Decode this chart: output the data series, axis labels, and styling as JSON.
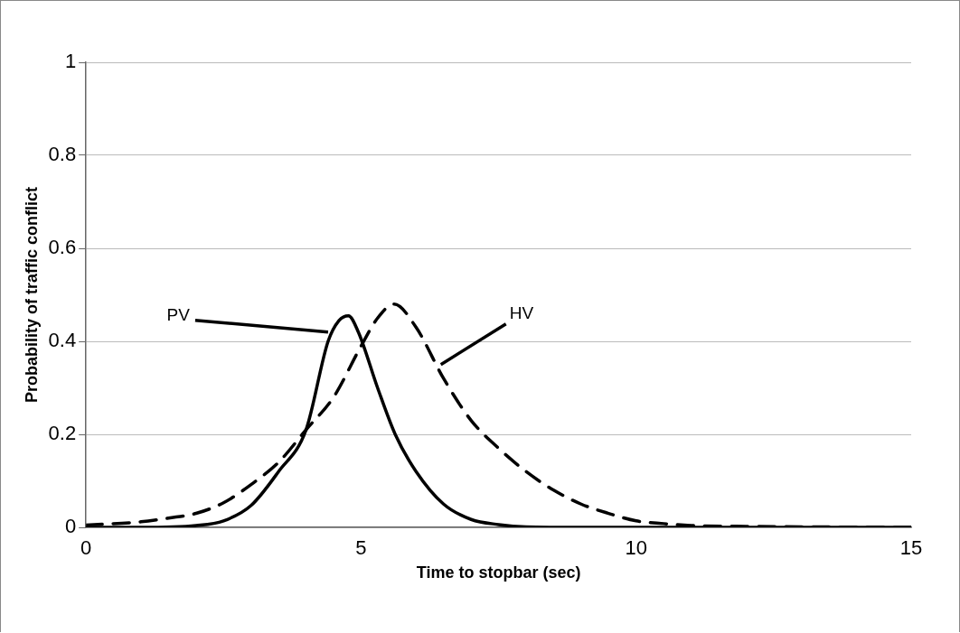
{
  "chart_data": {
    "type": "line",
    "xlabel": "Time to stopbar (sec)",
    "ylabel": "Probability of traffic conflict",
    "xlim": [
      0,
      15
    ],
    "xticks": [
      0,
      5,
      10,
      15
    ],
    "ylim": [
      0,
      1
    ],
    "yticks": [
      0,
      0.2,
      0.4,
      0.6,
      0.8,
      1
    ],
    "grid": "y",
    "legend": false,
    "marker": "none",
    "series": [
      {
        "color": "#000000",
        "line_style": "solid",
        "x": [
          0,
          1,
          2,
          2.5,
          3,
          3.5,
          4,
          4.4,
          4.6,
          4.77,
          4.95,
          5.3,
          5.62,
          6,
          6.5,
          7,
          7.5,
          8,
          9,
          15
        ],
        "values": [
          0,
          0,
          0.004,
          0.014,
          0.047,
          0.12,
          0.21,
          0.4,
          0.445,
          0.455,
          0.42,
          0.3,
          0.2,
          0.12,
          0.05,
          0.017,
          0.006,
          0.001,
          0,
          0
        ]
      },
      {
        "color": "#000000",
        "line_style": "dashed",
        "x": [
          0,
          1,
          1.5,
          2,
          2.5,
          3,
          3.5,
          4,
          4.5,
          5,
          5.3,
          5.6,
          6,
          6.5,
          7,
          7.5,
          8,
          8.5,
          9,
          9.5,
          10,
          10.5,
          11,
          12,
          15
        ],
        "values": [
          0.005,
          0.012,
          0.02,
          0.03,
          0.053,
          0.092,
          0.14,
          0.21,
          0.28,
          0.39,
          0.45,
          0.48,
          0.43,
          0.32,
          0.23,
          0.17,
          0.12,
          0.08,
          0.05,
          0.03,
          0.014,
          0.008,
          0.004,
          0.002,
          0
        ]
      }
    ],
    "annotations": [
      {
        "text": "PV",
        "x": 4.4,
        "y": 0.42
      },
      {
        "text": "HV",
        "x": 6.45,
        "y": 0.35
      }
    ]
  }
}
